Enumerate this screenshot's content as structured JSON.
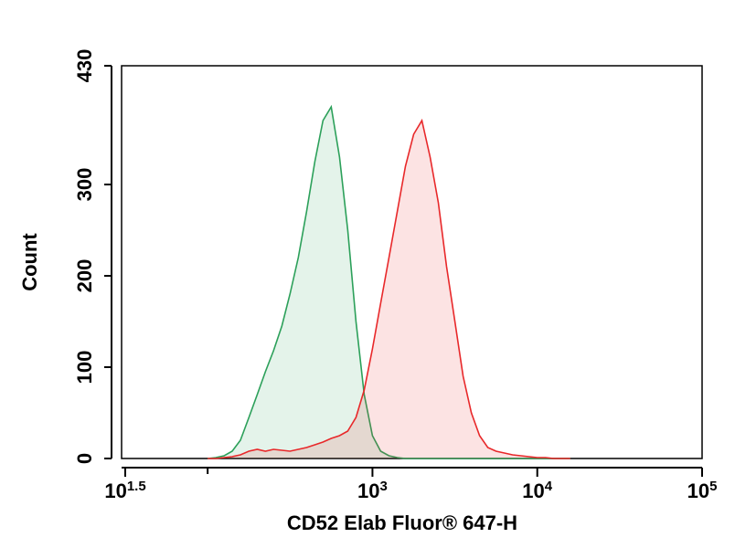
{
  "chart_data": {
    "type": "histogram-overlay",
    "x_label": "CD52 Elab Fluor® 647-H",
    "y_label": "Count",
    "xscale": "log",
    "xlim": [
      31.6227766,
      100000
    ],
    "xticks": [
      {
        "value": 31.6227766,
        "label": "101.5"
      },
      {
        "value": 1000,
        "label": "103"
      },
      {
        "value": 10000,
        "label": "104"
      },
      {
        "value": 100000,
        "label": "105"
      }
    ],
    "xminorticks": [
      100
    ],
    "ylim": [
      0,
      430
    ],
    "yticks": [
      0,
      100,
      200,
      300,
      430
    ],
    "x": [
      100,
      112,
      126,
      141,
      158,
      178,
      200,
      224,
      251,
      282,
      316,
      355,
      398,
      447,
      501,
      562,
      631,
      708,
      794,
      891,
      1000,
      1122,
      1259,
      1413,
      1585,
      1778,
      1995,
      2239,
      2512,
      2818,
      3162,
      3548,
      3981,
      4467,
      5012,
      5623,
      6310,
      7079,
      7943,
      8913,
      10000,
      11220,
      12589,
      14125,
      15849
    ],
    "series": [
      {
        "color": "#2ca05a",
        "values": [
          0,
          1,
          3,
          8,
          20,
          45,
          70,
          95,
          118,
          145,
          180,
          220,
          270,
          325,
          370,
          385,
          330,
          250,
          150,
          70,
          25,
          8,
          3,
          1,
          0,
          0,
          0,
          0,
          0,
          0,
          0,
          0,
          0,
          0,
          0,
          0,
          0,
          0,
          0,
          0,
          0,
          0,
          0,
          0,
          0
        ]
      },
      {
        "color": "#e8282a",
        "values": [
          0,
          0,
          1,
          2,
          4,
          8,
          10,
          8,
          10,
          9,
          8,
          10,
          12,
          15,
          18,
          22,
          25,
          30,
          45,
          75,
          120,
          170,
          220,
          270,
          320,
          355,
          370,
          330,
          280,
          210,
          150,
          90,
          50,
          25,
          12,
          8,
          6,
          4,
          3,
          2,
          1,
          1,
          0,
          0,
          0
        ]
      }
    ]
  }
}
